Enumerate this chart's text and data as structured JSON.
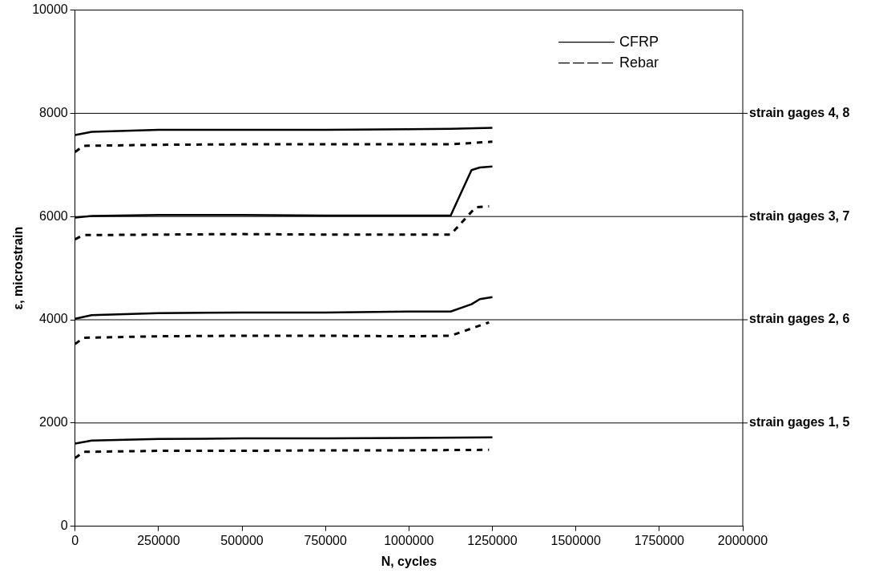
{
  "chart_data": {
    "type": "line",
    "xlabel": "N, cycles",
    "ylabel": "ε, microstrain",
    "xlim": [
      0,
      2000000
    ],
    "xticks": [
      0,
      250000,
      500000,
      750000,
      1000000,
      1250000,
      1500000,
      1750000,
      2000000
    ],
    "ylim": [
      0,
      10000
    ],
    "yticks": [
      0,
      2000,
      4000,
      6000,
      8000,
      10000
    ],
    "ref_lines": [
      {
        "axis": "y",
        "value": 8000,
        "label": "strain gages 4, 8"
      },
      {
        "axis": "y",
        "value": 6000,
        "label": "strain gages 3, 7"
      },
      {
        "axis": "y",
        "value": 4000,
        "label": "strain gages 2, 6"
      },
      {
        "axis": "y",
        "value": 2000,
        "label": "strain gages 1, 5"
      }
    ],
    "legend": "top right",
    "marker": "none",
    "series": [
      {
        "name": "CFRP",
        "color": "#000000",
        "line_style": "solid",
        "x": [
          0,
          50000,
          150000,
          250000,
          500000,
          750000,
          1000000,
          1125000,
          1250000
        ],
        "values": [
          7580,
          7640,
          7660,
          7680,
          7680,
          7680,
          7690,
          7700,
          7720
        ]
      },
      {
        "name": "Rebar",
        "color": "#000000",
        "line_style": "dashed",
        "x": [
          0,
          25000,
          250000,
          500000,
          750000,
          1000000,
          1125000,
          1250000
        ],
        "values": [
          7250,
          7370,
          7390,
          7400,
          7400,
          7400,
          7400,
          7450
        ]
      },
      {
        "color": "#000000",
        "line_style": "solid",
        "x": [
          0,
          50000,
          250000,
          500000,
          750000,
          1000000,
          1125000,
          1187500,
          1212500,
          1250000
        ],
        "values": [
          5980,
          6010,
          6030,
          6030,
          6020,
          6020,
          6020,
          6900,
          6950,
          6970
        ]
      },
      {
        "color": "#000000",
        "line_style": "dashed",
        "x": [
          0,
          25000,
          250000,
          500000,
          750000,
          1000000,
          1125000,
          1200000,
          1240000
        ],
        "values": [
          5560,
          5640,
          5650,
          5660,
          5650,
          5650,
          5650,
          6180,
          6200
        ]
      },
      {
        "color": "#000000",
        "line_style": "solid",
        "x": [
          0,
          50000,
          250000,
          500000,
          750000,
          1000000,
          1125000,
          1187500,
          1212500,
          1250000
        ],
        "values": [
          4020,
          4090,
          4130,
          4140,
          4140,
          4160,
          4160,
          4300,
          4400,
          4440
        ]
      },
      {
        "color": "#000000",
        "line_style": "dashed",
        "x": [
          0,
          25000,
          250000,
          500000,
          750000,
          1000000,
          1125000,
          1240000
        ],
        "values": [
          3530,
          3650,
          3680,
          3690,
          3690,
          3680,
          3690,
          3950
        ]
      },
      {
        "color": "#000000",
        "line_style": "solid",
        "x": [
          0,
          50000,
          250000,
          500000,
          750000,
          1000000,
          1250000
        ],
        "values": [
          1600,
          1660,
          1690,
          1700,
          1700,
          1710,
          1720
        ]
      },
      {
        "color": "#000000",
        "line_style": "dashed",
        "x": [
          0,
          25000,
          250000,
          500000,
          750000,
          1000000,
          1240000
        ],
        "values": [
          1320,
          1440,
          1460,
          1460,
          1470,
          1470,
          1480
        ]
      }
    ]
  }
}
